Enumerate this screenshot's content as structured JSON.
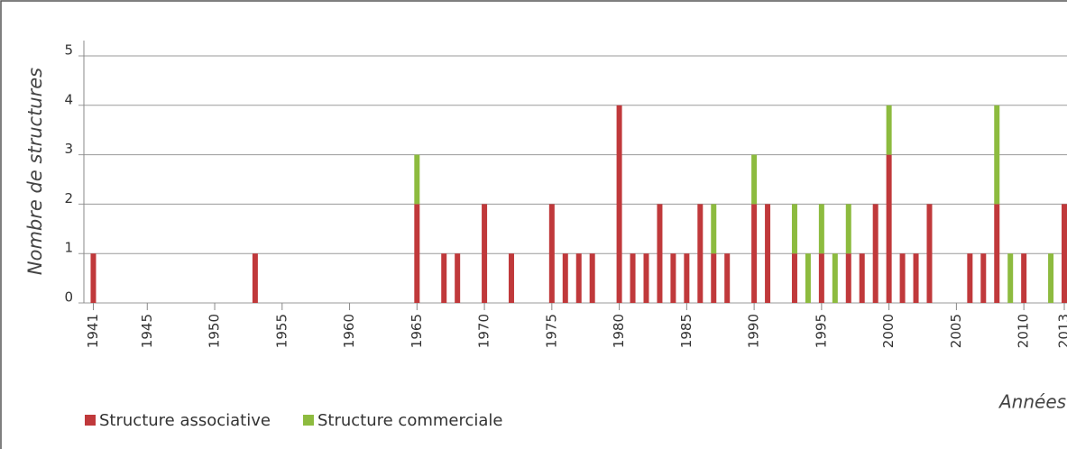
{
  "chart_data": {
    "type": "stacked_bar",
    "y_label": "Nombre de structures",
    "x_label": "Années",
    "x": [
      1941,
      1953,
      1965,
      1967,
      1968,
      1970,
      1972,
      1975,
      1976,
      1977,
      1978,
      1980,
      1981,
      1982,
      1983,
      1984,
      1985,
      1986,
      1987,
      1988,
      1990,
      1991,
      1993,
      1994,
      1995,
      1996,
      1997,
      1998,
      1999,
      2000,
      2001,
      2002,
      2003,
      2006,
      2007,
      2008,
      2009,
      2010,
      2012,
      2013
    ],
    "series": [
      {
        "name": "Structure associative",
        "color": "#c0393b",
        "values": [
          1,
          1,
          2,
          1,
          1,
          2,
          1,
          2,
          1,
          1,
          1,
          4,
          1,
          1,
          2,
          1,
          1,
          2,
          1,
          1,
          2,
          2,
          1,
          0,
          1,
          0,
          1,
          1,
          2,
          3,
          1,
          1,
          2,
          1,
          1,
          2,
          0,
          1,
          0,
          2
        ]
      },
      {
        "name": "Structure commerciale",
        "color": "#8dbb3f",
        "values": [
          0,
          0,
          1,
          0,
          0,
          0,
          0,
          0,
          0,
          0,
          0,
          0,
          0,
          0,
          0,
          0,
          0,
          0,
          1,
          0,
          1,
          0,
          1,
          1,
          1,
          1,
          1,
          0,
          0,
          1,
          0,
          0,
          0,
          0,
          0,
          2,
          1,
          0,
          1,
          0
        ]
      }
    ],
    "xlim": [
      1940.3,
      2013.2
    ],
    "xticks": [
      1941,
      1945,
      1950,
      1955,
      1960,
      1965,
      1970,
      1975,
      1980,
      1985,
      1990,
      1995,
      2000,
      2005,
      2010,
      2013
    ],
    "ylim": [
      0,
      5
    ],
    "yticks": [
      0,
      1,
      2,
      3,
      4,
      5
    ],
    "grid": true
  }
}
